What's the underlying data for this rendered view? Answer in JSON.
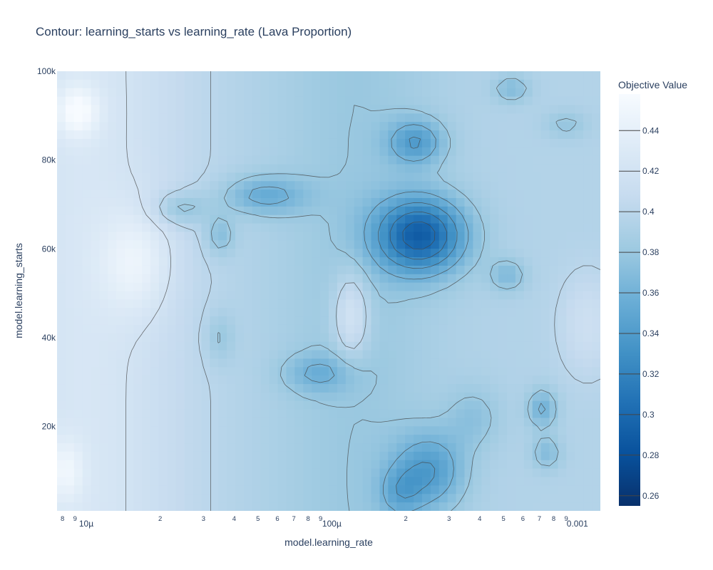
{
  "chart_data": {
    "type": "heatmap",
    "subtype": "contour",
    "title": "Contour: learning_starts vs learning_rate (Lava Proportion)",
    "xlabel": "model.learning_rate",
    "ylabel": "model.learning_starts",
    "x_scale": "log",
    "xlim": [
      7.6e-06,
      0.00124
    ],
    "ylim": [
      1000,
      100000
    ],
    "x_ticks_major": [
      {
        "value": 1e-05,
        "label": "10µ"
      },
      {
        "value": 0.0001,
        "label": "100µ"
      },
      {
        "value": 0.001,
        "label": "0.001"
      }
    ],
    "x_ticks_minor": [
      {
        "value": 8e-06,
        "label": "8"
      },
      {
        "value": 9e-06,
        "label": "9"
      },
      {
        "value": 2e-05,
        "label": "2"
      },
      {
        "value": 3e-05,
        "label": "3"
      },
      {
        "value": 4e-05,
        "label": "4"
      },
      {
        "value": 5e-05,
        "label": "5"
      },
      {
        "value": 6e-05,
        "label": "6"
      },
      {
        "value": 7e-05,
        "label": "7"
      },
      {
        "value": 8e-05,
        "label": "8"
      },
      {
        "value": 9e-05,
        "label": "9"
      },
      {
        "value": 0.0002,
        "label": "2"
      },
      {
        "value": 0.0003,
        "label": "3"
      },
      {
        "value": 0.0004,
        "label": "4"
      },
      {
        "value": 0.0005,
        "label": "5"
      },
      {
        "value": 0.0006,
        "label": "6"
      },
      {
        "value": 0.0007,
        "label": "7"
      },
      {
        "value": 0.0008,
        "label": "8"
      },
      {
        "value": 0.0009,
        "label": "9"
      }
    ],
    "y_ticks": [
      {
        "value": 20000,
        "label": "20k"
      },
      {
        "value": 40000,
        "label": "40k"
      },
      {
        "value": 60000,
        "label": "60k"
      },
      {
        "value": 80000,
        "label": "80k"
      },
      {
        "value": 100000,
        "label": "100k"
      }
    ],
    "colorbar": {
      "title": "Objective Value",
      "range": [
        0.255,
        0.458
      ],
      "ticks": [
        0.26,
        0.28,
        0.3,
        0.32,
        0.34,
        0.36,
        0.38,
        0.4,
        0.42,
        0.44
      ],
      "tick_labels": [
        "0.26",
        "0.28",
        "0.3",
        "0.32",
        "0.34",
        "0.36",
        "0.38",
        "0.4",
        "0.42",
        "0.44"
      ],
      "colorscale": [
        "#08306b",
        "#08519c",
        "#2171b5",
        "#4292c6",
        "#6baed6",
        "#9ecae1",
        "#c6dbef",
        "#deebf7",
        "#f7fbff"
      ]
    },
    "grid": "off",
    "blobs": [
      {
        "x": 0.00023,
        "y": 63000,
        "sx": 0.13,
        "sy": 6000,
        "d": -0.1
      },
      {
        "x": 0.00022,
        "y": 84000,
        "sx": 0.08,
        "sy": 3500,
        "d": -0.05
      },
      {
        "x": 0.00025,
        "y": 10000,
        "sx": 0.1,
        "sy": 6000,
        "d": -0.05
      },
      {
        "x": 0.00019,
        "y": 5000,
        "sx": 0.06,
        "sy": 4000,
        "d": -0.03
      },
      {
        "x": 5.3e-05,
        "y": 72000,
        "sx": 0.12,
        "sy": 3000,
        "d": -0.04
      },
      {
        "x": 8.8e-05,
        "y": 32000,
        "sx": 0.1,
        "sy": 3000,
        "d": -0.03
      },
      {
        "x": 3.5e-05,
        "y": 63000,
        "sx": 0.04,
        "sy": 3000,
        "d": -0.03
      },
      {
        "x": 3.5e-05,
        "y": 40000,
        "sx": 0.04,
        "sy": 4000,
        "d": -0.02
      },
      {
        "x": 0.00052,
        "y": 54000,
        "sx": 0.05,
        "sy": 2500,
        "d": -0.03
      },
      {
        "x": 0.00072,
        "y": 24000,
        "sx": 0.04,
        "sy": 3000,
        "d": -0.04
      },
      {
        "x": 0.00075,
        "y": 14000,
        "sx": 0.04,
        "sy": 2500,
        "d": -0.03
      },
      {
        "x": 0.00038,
        "y": 22000,
        "sx": 0.08,
        "sy": 5000,
        "d": -0.02
      },
      {
        "x": 0.00054,
        "y": 96000,
        "sx": 0.05,
        "sy": 2000,
        "d": -0.03
      },
      {
        "x": 0.0009,
        "y": 88000,
        "sx": 0.06,
        "sy": 2000,
        "d": -0.02
      },
      {
        "x": 2.4e-05,
        "y": 69000,
        "sx": 0.08,
        "sy": 2500,
        "d": -0.03
      },
      {
        "x": 9.2e-06,
        "y": 91000,
        "sx": 0.06,
        "sy": 4000,
        "d": 0.04
      },
      {
        "x": 8.2e-06,
        "y": 10000,
        "sx": 0.05,
        "sy": 5000,
        "d": 0.03
      },
      {
        "x": 0.00012,
        "y": 45000,
        "sx": 0.05,
        "sy": 7000,
        "d": 0.04
      },
      {
        "x": 0.0011,
        "y": 43000,
        "sx": 0.08,
        "sy": 8000,
        "d": 0.02
      },
      {
        "x": 1.6e-05,
        "y": 57000,
        "sx": 0.1,
        "sy": 8000,
        "d": 0.03
      }
    ],
    "base_value": 0.395
  }
}
